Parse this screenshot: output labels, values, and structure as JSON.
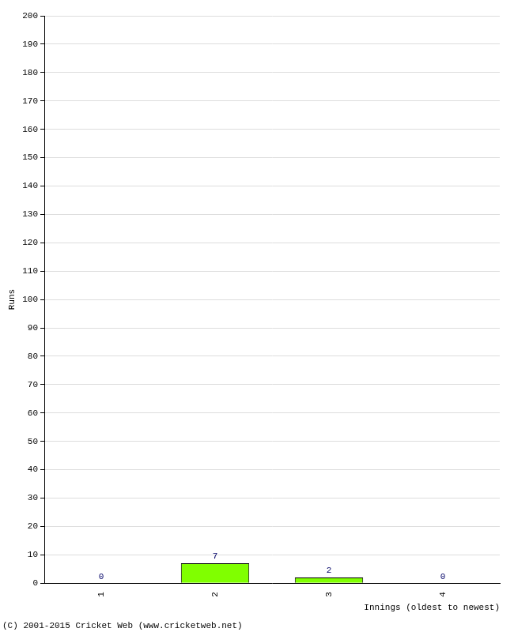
{
  "chart_data": {
    "type": "bar",
    "categories": [
      "1",
      "2",
      "3",
      "4"
    ],
    "values": [
      0,
      7,
      2,
      0
    ],
    "color": "#80ff00",
    "xlabel": "Innings (oldest to newest)",
    "ylabel": "Runs",
    "ylim": [
      0,
      200
    ],
    "yticks": [
      0,
      10,
      20,
      30,
      40,
      50,
      60,
      70,
      80,
      90,
      100,
      110,
      120,
      130,
      140,
      150,
      160,
      170,
      180,
      190,
      200
    ],
    "grid": true,
    "data_labels": true,
    "annotations": [
      "(C) 2001-2015 Cricket Web (www.cricketweb.net)"
    ]
  }
}
